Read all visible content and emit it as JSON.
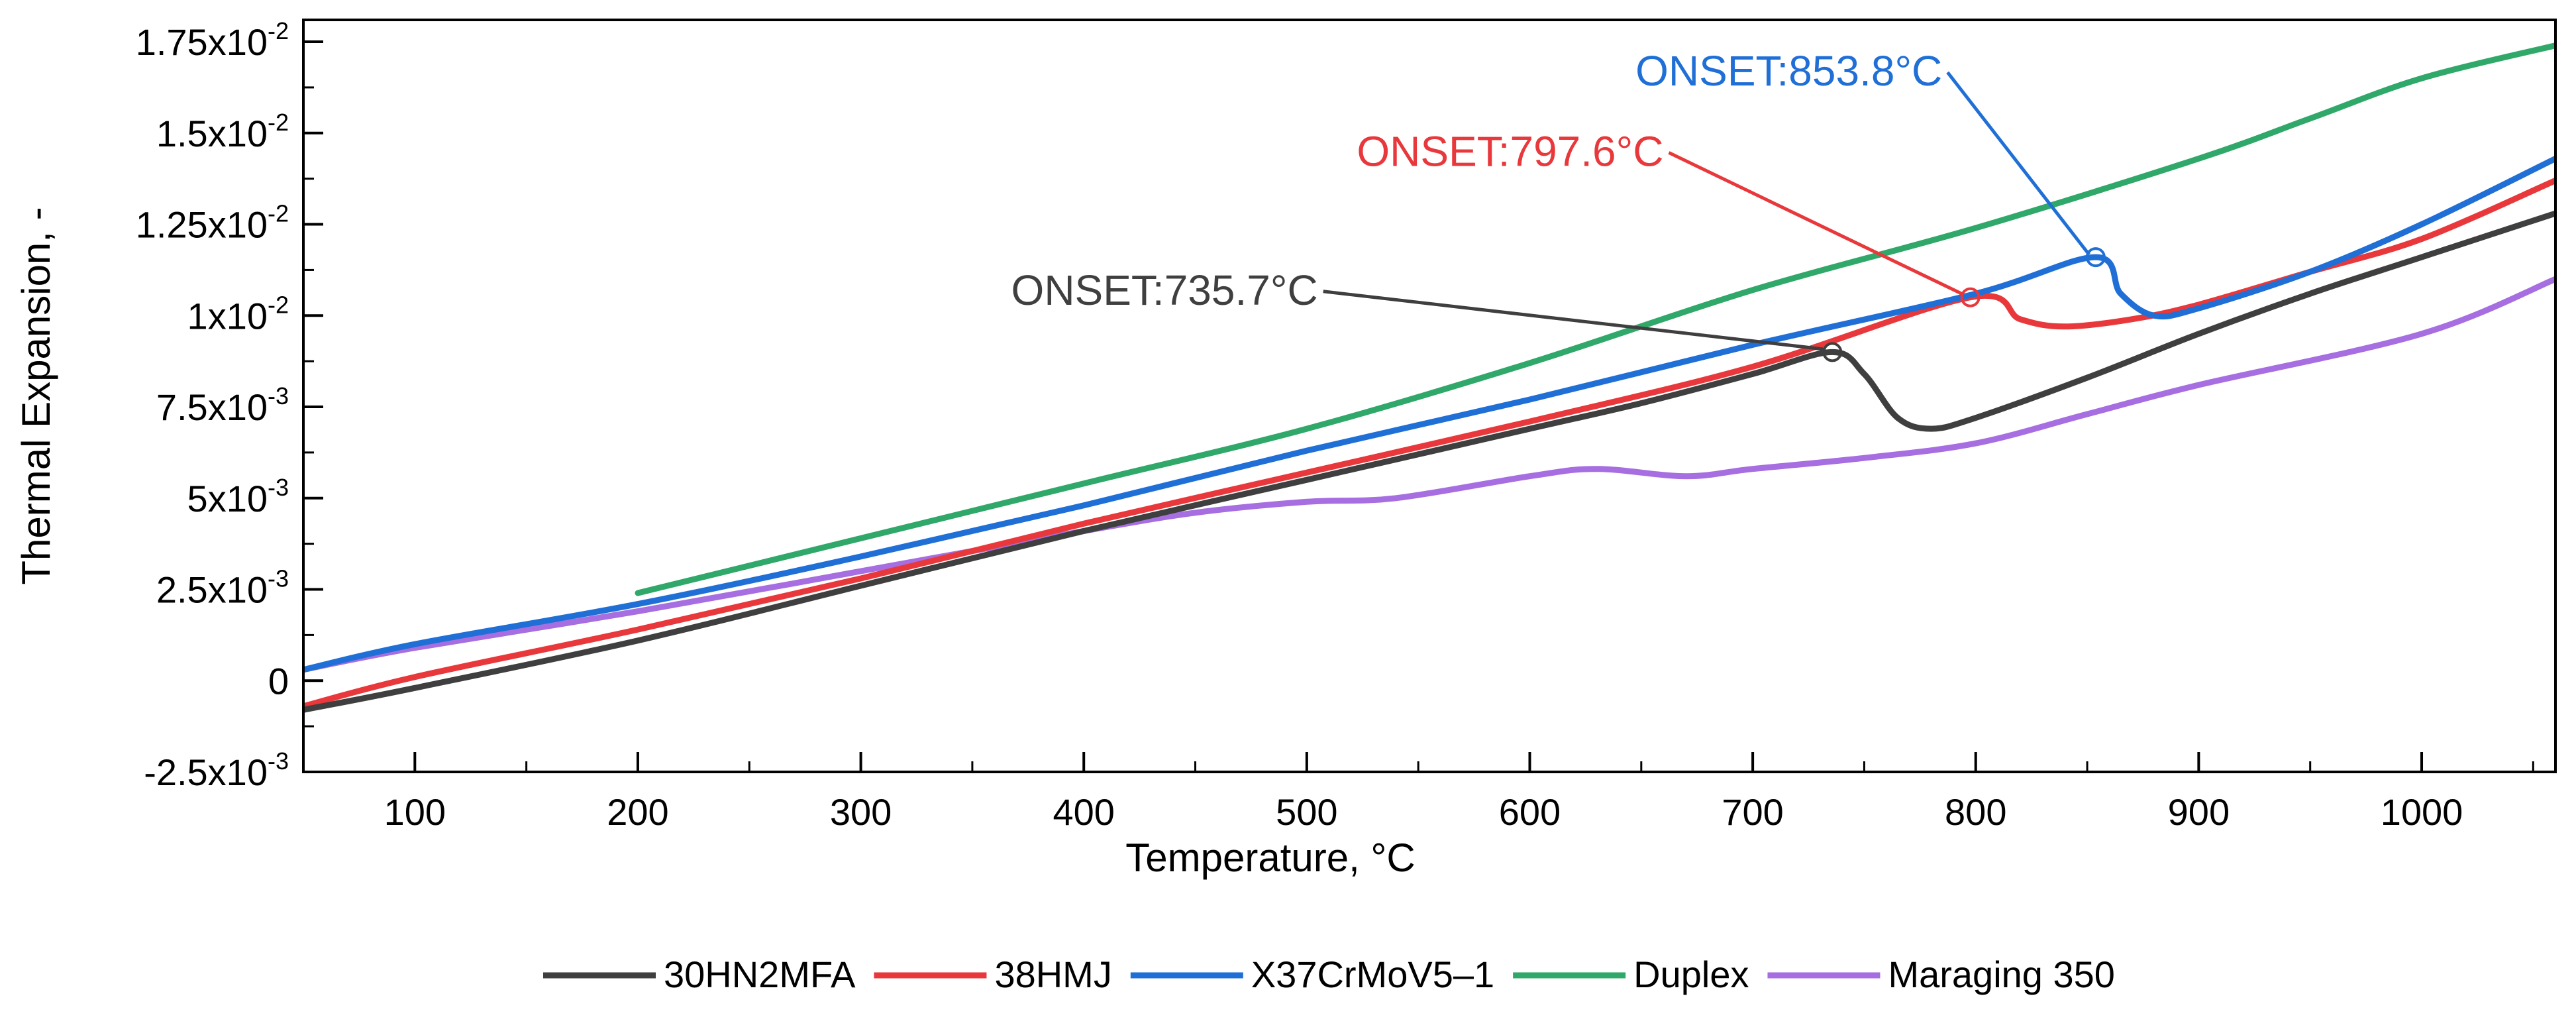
{
  "chart_data": {
    "type": "line",
    "title": "",
    "xlabel": "Temperature, °C",
    "ylabel": "Thermal Expansion, -",
    "xlim": [
      50,
      1060
    ],
    "ylim": [
      -0.0025,
      0.0181
    ],
    "x_ticks": [
      100,
      200,
      300,
      400,
      500,
      600,
      700,
      800,
      900,
      1000
    ],
    "y_ticks": [
      {
        "value": -0.0025,
        "mantissa": "-2.5x10",
        "exp": "-3"
      },
      {
        "value": 0,
        "mantissa": "0",
        "exp": ""
      },
      {
        "value": 0.0025,
        "mantissa": "2.5x10",
        "exp": "-3"
      },
      {
        "value": 0.005,
        "mantissa": "5x10",
        "exp": "-3"
      },
      {
        "value": 0.0075,
        "mantissa": "7.5x10",
        "exp": "-3"
      },
      {
        "value": 0.01,
        "mantissa": "1x10",
        "exp": "-2"
      },
      {
        "value": 0.0125,
        "mantissa": "1.25x10",
        "exp": "-2"
      },
      {
        "value": 0.015,
        "mantissa": "1.5x10",
        "exp": "-2"
      },
      {
        "value": 0.0175,
        "mantissa": "1.75x10",
        "exp": "-2"
      }
    ],
    "grid": false,
    "legend_position": "bottom",
    "series": [
      {
        "name": "30HN2MFA",
        "color": "#3f3f3f",
        "points": [
          [
            50,
            -0.0008
          ],
          [
            100,
            -0.0002
          ],
          [
            200,
            0.0011
          ],
          [
            300,
            0.0026
          ],
          [
            400,
            0.0041
          ],
          [
            500,
            0.0055
          ],
          [
            600,
            0.0069
          ],
          [
            650,
            0.0076
          ],
          [
            700,
            0.0084
          ],
          [
            735.7,
            0.009
          ],
          [
            750,
            0.0084
          ],
          [
            765,
            0.0072
          ],
          [
            780,
            0.0069
          ],
          [
            800,
            0.0072
          ],
          [
            850,
            0.0083
          ],
          [
            900,
            0.0095
          ],
          [
            950,
            0.0106
          ],
          [
            1000,
            0.0116
          ],
          [
            1060,
            0.0128
          ]
        ]
      },
      {
        "name": "38HMJ",
        "color": "#e8383b",
        "points": [
          [
            50,
            -0.0007
          ],
          [
            100,
            0.0001
          ],
          [
            200,
            0.0014
          ],
          [
            300,
            0.0028
          ],
          [
            400,
            0.0043
          ],
          [
            500,
            0.0057
          ],
          [
            600,
            0.0071
          ],
          [
            700,
            0.0086
          ],
          [
            797.6,
            0.0105
          ],
          [
            820,
            0.0099
          ],
          [
            840,
            0.0097
          ],
          [
            870,
            0.0099
          ],
          [
            900,
            0.0103
          ],
          [
            950,
            0.0112
          ],
          [
            1000,
            0.0121
          ],
          [
            1060,
            0.0137
          ]
        ]
      },
      {
        "name": "X37CrMoV5–1",
        "color": "#1f6fd6",
        "points": [
          [
            50,
            0.0003
          ],
          [
            100,
            0.001
          ],
          [
            200,
            0.0021
          ],
          [
            300,
            0.0034
          ],
          [
            400,
            0.0048
          ],
          [
            500,
            0.0063
          ],
          [
            600,
            0.0077
          ],
          [
            700,
            0.0092
          ],
          [
            800,
            0.0106
          ],
          [
            853.8,
            0.0116
          ],
          [
            865,
            0.0106
          ],
          [
            880,
            0.01
          ],
          [
            900,
            0.0102
          ],
          [
            950,
            0.0112
          ],
          [
            1000,
            0.0125
          ],
          [
            1060,
            0.0143
          ]
        ]
      },
      {
        "name": "Duplex",
        "color": "#2fa86a",
        "points": [
          [
            200,
            0.0024
          ],
          [
            300,
            0.0039
          ],
          [
            400,
            0.0054
          ],
          [
            500,
            0.0069
          ],
          [
            600,
            0.0087
          ],
          [
            700,
            0.0107
          ],
          [
            800,
            0.0124
          ],
          [
            900,
            0.0143
          ],
          [
            950,
            0.0154
          ],
          [
            1000,
            0.0165
          ],
          [
            1060,
            0.0174
          ]
        ]
      },
      {
        "name": "Maraging 350",
        "color": "#a66ee0",
        "points": [
          [
            50,
            0.0003
          ],
          [
            100,
            0.0009
          ],
          [
            200,
            0.0019
          ],
          [
            300,
            0.003
          ],
          [
            400,
            0.0041
          ],
          [
            450,
            0.0046
          ],
          [
            500,
            0.0049
          ],
          [
            540,
            0.005
          ],
          [
            600,
            0.0056
          ],
          [
            630,
            0.0058
          ],
          [
            670,
            0.0056
          ],
          [
            700,
            0.0058
          ],
          [
            750,
            0.0061
          ],
          [
            800,
            0.0065
          ],
          [
            850,
            0.0073
          ],
          [
            900,
            0.0081
          ],
          [
            1000,
            0.0095
          ],
          [
            1060,
            0.011
          ]
        ]
      }
    ],
    "annotations": [
      {
        "text": "ONSET:735.7°C",
        "series": "30HN2MFA",
        "x": 735.7,
        "y": 0.009,
        "color": "#3f3f3f",
        "label_x": 505,
        "label_y": 0.0103
      },
      {
        "text": "ONSET:797.6°C",
        "series": "38HMJ",
        "x": 797.6,
        "y": 0.0105,
        "color": "#e8383b",
        "label_x": 660,
        "label_y": 0.0141
      },
      {
        "text": "ONSET:853.8°C",
        "series": "X37CrMoV5–1",
        "x": 853.8,
        "y": 0.0116,
        "color": "#1f6fd6",
        "label_x": 785,
        "label_y": 0.0163
      }
    ]
  }
}
